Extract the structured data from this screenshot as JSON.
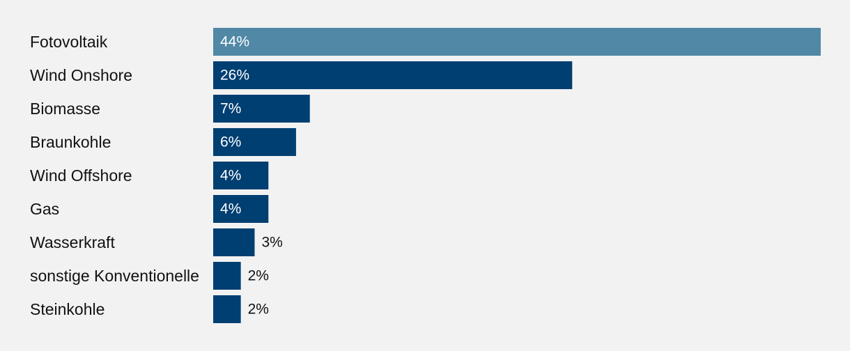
{
  "chart_data": {
    "type": "bar",
    "orientation": "horizontal",
    "title": "",
    "xlabel": "",
    "ylabel": "",
    "grid": false,
    "legend": "none",
    "xlim": [
      0,
      44
    ],
    "categories": [
      "Fotovoltaik",
      "Wind Onshore",
      "Biomasse",
      "Braunkohle",
      "Wind Offshore",
      "Gas",
      "Wasserkraft",
      "sonstige Konventionelle",
      "Steinkohle"
    ],
    "values": [
      44,
      26,
      7,
      6,
      4,
      4,
      3,
      2,
      2
    ],
    "value_labels": [
      "44%",
      "26%",
      "7%",
      "6%",
      "4%",
      "4%",
      "3%",
      "2%",
      "2%"
    ],
    "colors": {
      "highlight": "#5088a6",
      "default": "#003f72",
      "label_inside": "#ffffff",
      "label_outside": "#111111",
      "background": "#f2f2f2"
    },
    "highlight_index": 0
  }
}
